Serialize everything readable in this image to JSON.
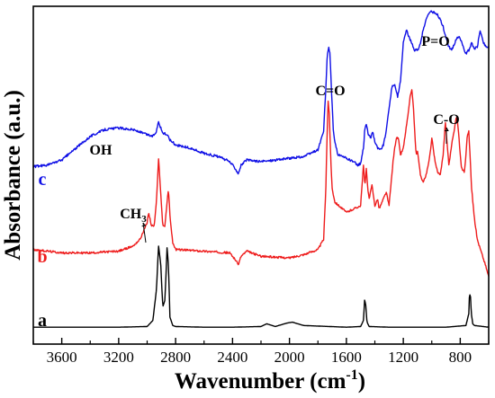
{
  "chart_data": {
    "type": "line",
    "xlabel": "Wavenumber (cm",
    "xlabel_sup": "-1",
    "xlabel_end": ")",
    "ylabel": "Absorbance (a.u.)",
    "xlim": [
      3800,
      600
    ],
    "ylim": [
      0,
      10
    ],
    "x_reversed": true,
    "x_ticks": [
      3600,
      3200,
      2800,
      2400,
      2000,
      1600,
      1200,
      800
    ],
    "y_ticks_labeled": false,
    "grid": false,
    "legend": "none",
    "colors": {
      "a": "#000000",
      "b": "#ee1c1c",
      "c": "#1010e6",
      "axis": "#000000"
    },
    "series": [
      {
        "name": "a",
        "label_color": "#000000",
        "x": [
          3800,
          3600,
          3200,
          3000,
          2960,
          2935,
          2920,
          2905,
          2890,
          2875,
          2860,
          2850,
          2840,
          2820,
          2800,
          2600,
          2400,
          2200,
          2160,
          2100,
          2020,
          1980,
          1900,
          1600,
          1500,
          1480,
          1472,
          1465,
          1455,
          1440,
          1300,
          1100,
          900,
          760,
          740,
          735,
          728,
          722,
          712,
          700,
          600
        ],
        "y": [
          0.5,
          0.5,
          0.5,
          0.52,
          0.7,
          1.6,
          2.9,
          2.4,
          1.1,
          1.3,
          2.85,
          2.3,
          0.8,
          0.55,
          0.52,
          0.5,
          0.5,
          0.52,
          0.6,
          0.52,
          0.62,
          0.65,
          0.55,
          0.5,
          0.52,
          0.7,
          1.3,
          1.2,
          0.65,
          0.52,
          0.5,
          0.5,
          0.5,
          0.55,
          0.9,
          1.5,
          1.4,
          0.9,
          0.6,
          0.55,
          0.5
        ]
      },
      {
        "name": "b",
        "label_color": "#ee1c1c",
        "x": [
          3800,
          3600,
          3400,
          3200,
          3100,
          3050,
          3000,
          2990,
          2970,
          2950,
          2935,
          2920,
          2905,
          2890,
          2875,
          2860,
          2850,
          2840,
          2820,
          2800,
          2600,
          2420,
          2380,
          2360,
          2340,
          2300,
          2200,
          2000,
          1900,
          1800,
          1760,
          1745,
          1735,
          1728,
          1720,
          1710,
          1700,
          1680,
          1600,
          1500,
          1480,
          1470,
          1460,
          1450,
          1440,
          1430,
          1420,
          1400,
          1380,
          1370,
          1340,
          1320,
          1300,
          1270,
          1250,
          1235,
          1220,
          1200,
          1180,
          1160,
          1150,
          1140,
          1130,
          1120,
          1110,
          1100,
          1080,
          1060,
          1040,
          1020,
          1010,
          1000,
          980,
          960,
          940,
          920,
          910,
          905,
          895,
          880,
          860,
          840,
          830,
          820,
          810,
          800,
          790,
          770,
          760,
          750,
          740,
          730,
          720,
          700,
          680,
          650,
          620,
          600
        ],
        "y": [
          2.8,
          2.7,
          2.7,
          2.75,
          2.9,
          3.1,
          3.6,
          3.9,
          3.5,
          3.5,
          4.2,
          5.5,
          4.5,
          3.5,
          3.5,
          4.2,
          4.6,
          3.8,
          3.0,
          2.8,
          2.75,
          2.7,
          2.5,
          2.35,
          2.6,
          2.75,
          2.6,
          2.55,
          2.65,
          2.8,
          3.1,
          4.5,
          6.3,
          7.2,
          6.8,
          5.5,
          4.6,
          4.2,
          3.9,
          4.1,
          5.3,
          4.7,
          5.2,
          4.6,
          4.3,
          4.5,
          4.7,
          4.1,
          4.3,
          4.0,
          4.3,
          4.5,
          4.1,
          5.5,
          6.1,
          6.1,
          5.6,
          5.8,
          6.4,
          7.0,
          7.4,
          7.5,
          7.1,
          6.3,
          5.6,
          5.7,
          5.0,
          4.8,
          5.0,
          5.4,
          5.7,
          6.1,
          5.5,
          5.1,
          5.0,
          5.6,
          6.2,
          6.6,
          6.1,
          5.3,
          5.9,
          6.4,
          6.7,
          6.6,
          6.2,
          5.6,
          5.2,
          5.1,
          5.6,
          6.2,
          6.3,
          5.5,
          4.6,
          3.7,
          3.1,
          2.7,
          2.3,
          2.0
        ]
      },
      {
        "name": "c",
        "label_color": "#1010e6",
        "x": [
          3800,
          3700,
          3600,
          3500,
          3400,
          3300,
          3200,
          3100,
          3000,
          2960,
          2935,
          2920,
          2905,
          2890,
          2860,
          2840,
          2800,
          2700,
          2600,
          2500,
          2420,
          2380,
          2360,
          2340,
          2300,
          2200,
          2000,
          1900,
          1800,
          1760,
          1745,
          1735,
          1725,
          1715,
          1705,
          1690,
          1660,
          1600,
          1550,
          1520,
          1500,
          1480,
          1470,
          1460,
          1445,
          1430,
          1415,
          1400,
          1380,
          1360,
          1340,
          1320,
          1300,
          1280,
          1260,
          1240,
          1220,
          1200,
          1180,
          1160,
          1140,
          1120,
          1100,
          1080,
          1060,
          1040,
          1020,
          1000,
          980,
          960,
          940,
          920,
          900,
          880,
          860,
          840,
          820,
          800,
          780,
          760,
          740,
          720,
          700,
          680,
          660,
          640,
          620,
          600
        ],
        "y": [
          5.25,
          5.3,
          5.45,
          5.8,
          6.15,
          6.35,
          6.4,
          6.35,
          6.2,
          6.15,
          6.3,
          6.6,
          6.4,
          6.25,
          6.2,
          6.05,
          5.9,
          5.8,
          5.65,
          5.55,
          5.4,
          5.2,
          5.05,
          5.3,
          5.45,
          5.4,
          5.5,
          5.55,
          5.75,
          6.3,
          7.5,
          8.5,
          8.8,
          8.6,
          7.5,
          6.2,
          5.6,
          5.5,
          5.4,
          5.3,
          5.35,
          5.8,
          6.4,
          6.5,
          6.2,
          6.1,
          6.3,
          6.0,
          5.8,
          5.75,
          5.9,
          6.3,
          7.0,
          7.6,
          7.7,
          7.3,
          7.8,
          8.9,
          9.3,
          9.1,
          8.9,
          8.7,
          8.7,
          8.9,
          9.3,
          9.6,
          9.8,
          9.85,
          9.8,
          9.75,
          9.6,
          9.4,
          9.05,
          8.8,
          8.7,
          8.9,
          9.1,
          9.05,
          8.8,
          8.6,
          8.7,
          8.9,
          8.75,
          8.8,
          9.3,
          8.95,
          8.8,
          8.8
        ]
      }
    ],
    "annotations": [
      {
        "text": "OH",
        "series": "c"
      },
      {
        "text": "CH",
        "sub": "3",
        "series": "b",
        "arrow": true
      },
      {
        "text": "C=O",
        "series": "c"
      },
      {
        "text": "P=O",
        "series": "c"
      },
      {
        "text": "C-O",
        "series": "b",
        "arrow": true
      }
    ]
  }
}
